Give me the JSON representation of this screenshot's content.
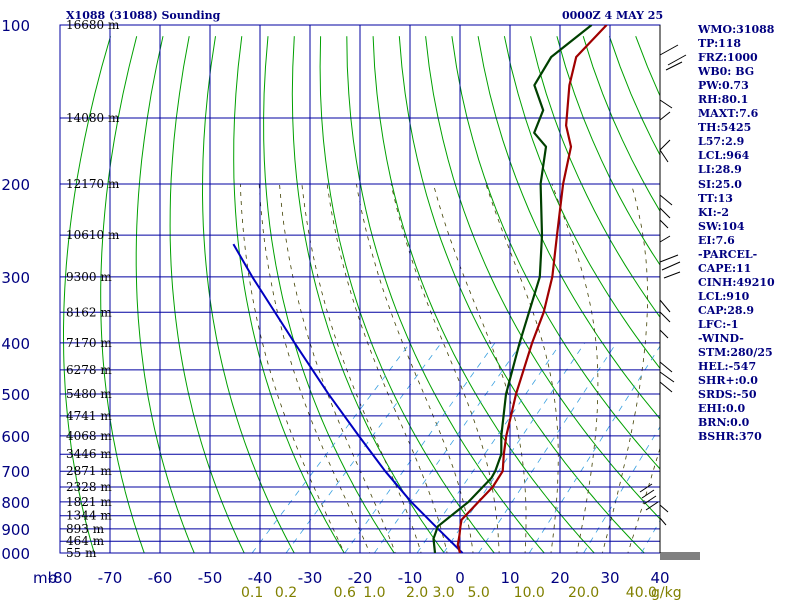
{
  "header": {
    "station_title": "X1088 (31088) Sounding",
    "valid_time": "0000Z  4 MAY 25"
  },
  "stats": [
    "WMO:31088",
    "TP:118",
    "FRZ:1000",
    "WB0: BG",
    "PW:0.73",
    "RH:80.1",
    "MAXT:7.6",
    "TH:5425",
    "L57:2.9",
    "LCL:964",
    "LI:28.9",
    "SI:25.0",
    "TT:13",
    "KI:-2",
    "SW:104",
    "EI:7.6",
    "-PARCEL-",
    "CAPE:11",
    "CINH:49210",
    "LCL:910",
    "CAP:28.9",
    "LFC:-1",
    "-WIND-",
    "STM:280/25",
    "HEL:-547",
    "SHR+:0.0",
    "SRDS:-50",
    "EHI:0.0",
    "BRN:0.0",
    "BSHR:370"
  ],
  "chart_data": {
    "type": "skew-t",
    "pressure_unit_label": "mb",
    "pressure_levels": [
      100,
      200,
      300,
      400,
      500,
      600,
      700,
      800,
      900,
      1000
    ],
    "pressure_ticks": [
      "100",
      "200",
      "300",
      "400",
      "500",
      "600",
      "700",
      "800",
      "900",
      "1000"
    ],
    "height_levels": [
      {
        "p": 100,
        "label": "16680 m"
      },
      {
        "p": 150,
        "label": "14080 m"
      },
      {
        "p": 200,
        "label": "12170 m"
      },
      {
        "p": 250,
        "label": "10610 m"
      },
      {
        "p": 300,
        "label": "9300 m"
      },
      {
        "p": 350,
        "label": "8162 m"
      },
      {
        "p": 400,
        "label": "7170 m"
      },
      {
        "p": 450,
        "label": "6278 m"
      },
      {
        "p": 500,
        "label": "5480 m"
      },
      {
        "p": 550,
        "label": "4741 m"
      },
      {
        "p": 600,
        "label": "4068 m"
      },
      {
        "p": 650,
        "label": "3446 m"
      },
      {
        "p": 700,
        "label": "2871 m"
      },
      {
        "p": 750,
        "label": "2328 m"
      },
      {
        "p": 800,
        "label": "1821 m"
      },
      {
        "p": 850,
        "label": "1344 m"
      },
      {
        "p": 900,
        "label": "893 m"
      },
      {
        "p": 950,
        "label": "464 m"
      },
      {
        "p": 1000,
        "label": "55 m"
      }
    ],
    "temperature_ticks": [
      {
        "t": -80,
        "label": "-80"
      },
      {
        "t": -70,
        "label": "-70"
      },
      {
        "t": -60,
        "label": "-60"
      },
      {
        "t": -50,
        "label": "-50"
      },
      {
        "t": -40,
        "label": "-40"
      },
      {
        "t": -30,
        "label": "-30"
      },
      {
        "t": -20,
        "label": "-20"
      },
      {
        "t": -10,
        "label": "-10"
      },
      {
        "t": 0,
        "label": "0"
      },
      {
        "t": 10,
        "label": "10"
      },
      {
        "t": 20,
        "label": "20"
      },
      {
        "t": 30,
        "label": "30"
      },
      {
        "t": 40,
        "label": "40"
      }
    ],
    "mixing_ratio_ticks": [
      {
        "w": 0.1,
        "label": "0.1"
      },
      {
        "w": 0.2,
        "label": "0.2"
      },
      {
        "w": 0.6,
        "label": "0.6"
      },
      {
        "w": 1.0,
        "label": "1.0"
      },
      {
        "w": 2.0,
        "label": "2.0"
      },
      {
        "w": 3.0,
        "label": "3.0"
      },
      {
        "w": 5.0,
        "label": "5.0"
      },
      {
        "w": 10.0,
        "label": "10.0"
      },
      {
        "w": 20.0,
        "label": "20.0"
      },
      {
        "w": 40.0,
        "label": "40.0"
      }
    ],
    "mixing_ratio_unit": "g/kg",
    "temperature_profile": [
      {
        "p": 1000,
        "t": 0.0
      },
      {
        "p": 965,
        "t": -2.0
      },
      {
        "p": 925,
        "t": -3.5
      },
      {
        "p": 890,
        "t": -5.0
      },
      {
        "p": 865,
        "t": -6.0
      },
      {
        "p": 800,
        "t": -6.0
      },
      {
        "p": 750,
        "t": -6.0
      },
      {
        "p": 700,
        "t": -7.0
      },
      {
        "p": 650,
        "t": -10.0
      },
      {
        "p": 600,
        "t": -13.0
      },
      {
        "p": 500,
        "t": -19.0
      },
      {
        "p": 400,
        "t": -25.5
      },
      {
        "p": 350,
        "t": -29.0
      },
      {
        "p": 300,
        "t": -34.0
      },
      {
        "p": 250,
        "t": -41.0
      },
      {
        "p": 200,
        "t": -49.5
      },
      {
        "p": 170,
        "t": -55.0
      },
      {
        "p": 155,
        "t": -60.0
      },
      {
        "p": 130,
        "t": -67.0
      },
      {
        "p": 115,
        "t": -71.0
      },
      {
        "p": 100,
        "t": -71.0
      }
    ],
    "dewpoint_profile": [
      {
        "p": 1000,
        "t": -5.0
      },
      {
        "p": 940,
        "t": -8.0
      },
      {
        "p": 890,
        "t": -9.5
      },
      {
        "p": 800,
        "t": -8.0
      },
      {
        "p": 720,
        "t": -8.0
      },
      {
        "p": 700,
        "t": -8.5
      },
      {
        "p": 650,
        "t": -10.5
      },
      {
        "p": 600,
        "t": -14.0
      },
      {
        "p": 500,
        "t": -21.0
      },
      {
        "p": 400,
        "t": -28.0
      },
      {
        "p": 300,
        "t": -36.5
      },
      {
        "p": 250,
        "t": -44.0
      },
      {
        "p": 200,
        "t": -54.0
      },
      {
        "p": 170,
        "t": -60.0
      },
      {
        "p": 160,
        "t": -65.0
      },
      {
        "p": 145,
        "t": -67.5
      },
      {
        "p": 130,
        "t": -74.0
      },
      {
        "p": 115,
        "t": -76.0
      },
      {
        "p": 100,
        "t": -74.0
      }
    ],
    "parcel_profile": [
      {
        "p": 1000,
        "t": 0.5
      },
      {
        "p": 900,
        "t": -9.0
      },
      {
        "p": 800,
        "t": -19.5
      },
      {
        "p": 700,
        "t": -30.5
      },
      {
        "p": 600,
        "t": -42.5
      },
      {
        "p": 500,
        "t": -56.5
      },
      {
        "p": 400,
        "t": -73.0
      },
      {
        "p": 300,
        "t": -94.0
      },
      {
        "p": 260,
        "t": -104.0
      }
    ],
    "colors": {
      "background": "#ffffff",
      "grid": "#0000a0",
      "labels": "#000080",
      "dry_adiabat": "#00a000",
      "moist_adiabat": "#404000",
      "mixing_ratio": "#3aa0e0",
      "temperature": "#a00000",
      "dewpoint": "#004000",
      "parcel": "#0000c0",
      "mixing_ratio_labels": "#808000"
    }
  }
}
